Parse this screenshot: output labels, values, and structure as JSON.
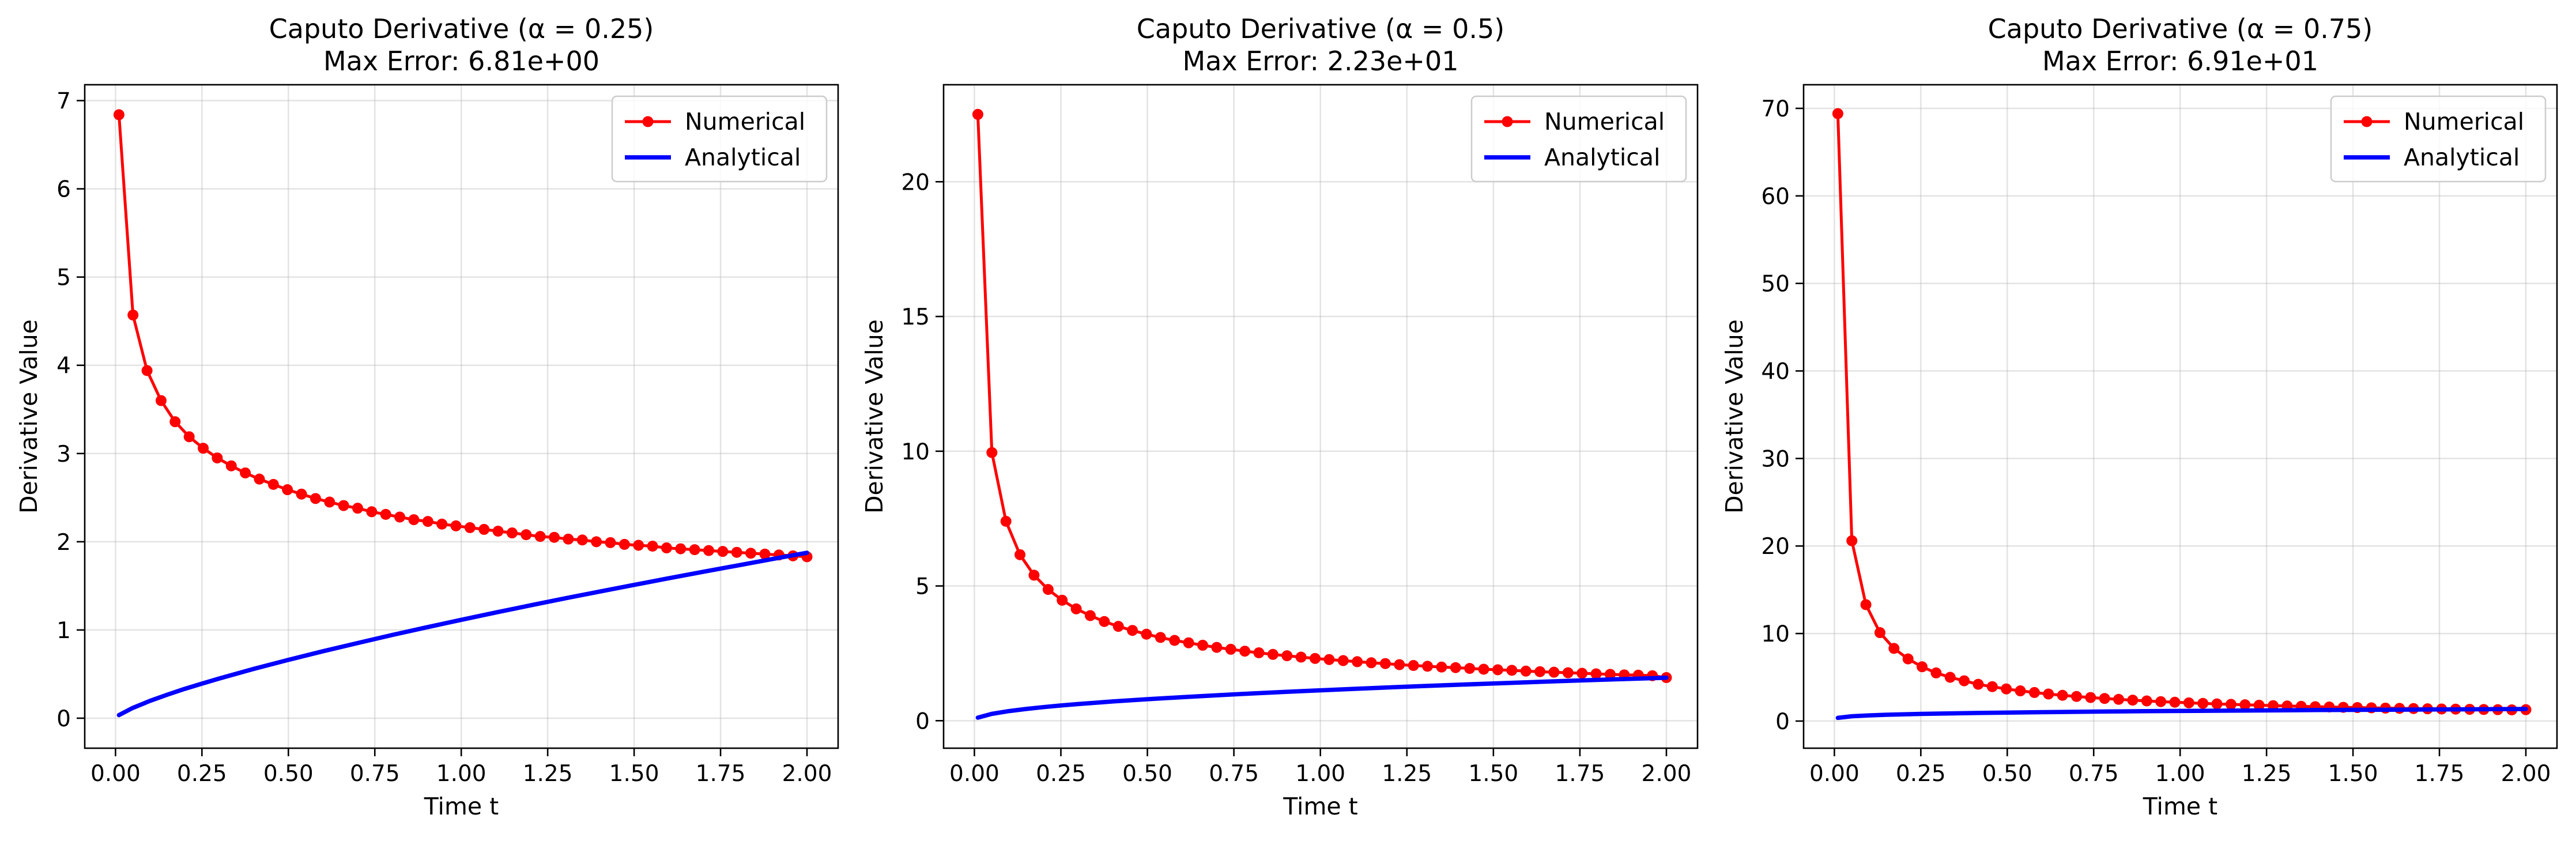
{
  "chart_data": [
    {
      "type": "line",
      "title": "Caputo Derivative (α = 0.25)",
      "subtitle": "Max Error: 6.81e+00",
      "xlabel": "Time t",
      "ylabel": "Derivative Value",
      "alpha": 0.25,
      "xlim": [
        -0.089,
        2.09
      ],
      "ylim": [
        -0.34,
        7.18
      ],
      "xticks": [
        0.0,
        0.25,
        0.5,
        0.75,
        1.0,
        1.25,
        1.5,
        1.75,
        2.0
      ],
      "xtick_labels": [
        "0.00",
        "0.25",
        "0.50",
        "0.75",
        "1.00",
        "1.25",
        "1.50",
        "1.75",
        "2.00"
      ],
      "yticks": [
        0,
        1,
        2,
        3,
        4,
        5,
        6,
        7
      ],
      "ytick_labels": [
        "0",
        "1",
        "2",
        "3",
        "4",
        "5",
        "6",
        "7"
      ],
      "grid": true,
      "legend": "top-right",
      "series": [
        {
          "name": "Numerical",
          "color": "#ff0000",
          "marker": "circle",
          "x": [
            0.01,
            0.0506,
            0.0912,
            0.1318,
            0.1724,
            0.2131,
            0.2537,
            0.2943,
            0.3349,
            0.3755,
            0.4161,
            0.4567,
            0.4973,
            0.5379,
            0.5786,
            0.6192,
            0.6598,
            0.7004,
            0.741,
            0.7816,
            0.8222,
            0.8628,
            0.9035,
            0.9441,
            0.9847,
            1.0253,
            1.0659,
            1.1065,
            1.1471,
            1.1877,
            1.2284,
            1.269,
            1.3096,
            1.3502,
            1.3908,
            1.4314,
            1.472,
            1.5126,
            1.5533,
            1.5939,
            1.6345,
            1.6751,
            1.7157,
            1.7563,
            1.7969,
            1.8375,
            1.8782,
            1.9188,
            1.9594,
            2.0
          ],
          "y": [
            6.84,
            4.57,
            3.94,
            3.6,
            3.36,
            3.19,
            3.06,
            2.95,
            2.86,
            2.78,
            2.71,
            2.65,
            2.59,
            2.54,
            2.49,
            2.45,
            2.41,
            2.38,
            2.34,
            2.31,
            2.28,
            2.25,
            2.23,
            2.2,
            2.18,
            2.16,
            2.14,
            2.12,
            2.1,
            2.08,
            2.06,
            2.05,
            2.03,
            2.02,
            2.0,
            1.99,
            1.97,
            1.96,
            1.95,
            1.93,
            1.92,
            1.91,
            1.9,
            1.89,
            1.88,
            1.87,
            1.86,
            1.85,
            1.84,
            1.83
          ]
        },
        {
          "name": "Analytical",
          "color": "#0000ff",
          "marker": "none",
          "x": [
            0.01,
            0.05,
            0.1,
            0.15,
            0.2,
            0.25,
            0.3,
            0.4,
            0.5,
            0.6,
            0.7,
            0.8,
            0.9,
            1.0,
            1.1,
            1.2,
            1.3,
            1.4,
            1.5,
            1.6,
            1.7,
            1.8,
            1.9,
            2.0
          ],
          "y": [
            0.035,
            0.117,
            0.197,
            0.267,
            0.332,
            0.392,
            0.45,
            0.559,
            0.661,
            0.759,
            0.852,
            0.943,
            1.03,
            1.115,
            1.198,
            1.279,
            1.358,
            1.435,
            1.511,
            1.586,
            1.66,
            1.732,
            1.804,
            1.875
          ]
        }
      ]
    },
    {
      "type": "line",
      "title": "Caputo Derivative (α = 0.5)",
      "subtitle": "Max Error: 2.23e+01",
      "xlabel": "Time t",
      "ylabel": "Derivative Value",
      "alpha": 0.5,
      "xlim": [
        -0.089,
        2.09
      ],
      "ylim": [
        -1.02,
        23.6
      ],
      "xticks": [
        0.0,
        0.25,
        0.5,
        0.75,
        1.0,
        1.25,
        1.5,
        1.75,
        2.0
      ],
      "xtick_labels": [
        "0.00",
        "0.25",
        "0.50",
        "0.75",
        "1.00",
        "1.25",
        "1.50",
        "1.75",
        "2.00"
      ],
      "yticks": [
        0,
        5,
        10,
        15,
        20
      ],
      "ytick_labels": [
        "0",
        "5",
        "10",
        "15",
        "20"
      ],
      "grid": true,
      "legend": "top-right",
      "series": [
        {
          "name": "Numerical",
          "color": "#ff0000",
          "marker": "circle",
          "x": [
            0.01,
            0.0506,
            0.0912,
            0.1318,
            0.1724,
            0.2131,
            0.2537,
            0.2943,
            0.3349,
            0.3755,
            0.4161,
            0.4567,
            0.4973,
            0.5379,
            0.5786,
            0.6192,
            0.6598,
            0.7004,
            0.741,
            0.7816,
            0.8222,
            0.8628,
            0.9035,
            0.9441,
            0.9847,
            1.0253,
            1.0659,
            1.1065,
            1.1471,
            1.1877,
            1.2284,
            1.269,
            1.3096,
            1.3502,
            1.3908,
            1.4314,
            1.472,
            1.5126,
            1.5533,
            1.5939,
            1.6345,
            1.6751,
            1.7157,
            1.7563,
            1.7969,
            1.8375,
            1.8782,
            1.9188,
            1.9594,
            2.0
          ],
          "y": [
            22.5,
            9.95,
            7.4,
            6.16,
            5.4,
            4.87,
            4.47,
            4.15,
            3.9,
            3.68,
            3.5,
            3.35,
            3.21,
            3.09,
            2.98,
            2.89,
            2.8,
            2.72,
            2.65,
            2.58,
            2.52,
            2.46,
            2.41,
            2.36,
            2.31,
            2.27,
            2.23,
            2.19,
            2.15,
            2.12,
            2.08,
            2.05,
            2.02,
            1.99,
            1.97,
            1.94,
            1.91,
            1.89,
            1.87,
            1.84,
            1.82,
            1.8,
            1.78,
            1.76,
            1.74,
            1.72,
            1.7,
            1.69,
            1.67,
            1.6
          ]
        },
        {
          "name": "Analytical",
          "color": "#0000ff",
          "marker": "none",
          "x": [
            0.01,
            0.05,
            0.1,
            0.15,
            0.2,
            0.25,
            0.3,
            0.4,
            0.5,
            0.6,
            0.7,
            0.8,
            0.9,
            1.0,
            1.1,
            1.2,
            1.3,
            1.4,
            1.5,
            1.6,
            1.7,
            1.8,
            1.9,
            2.0
          ],
          "y": [
            0.113,
            0.252,
            0.357,
            0.437,
            0.505,
            0.564,
            0.618,
            0.714,
            0.798,
            0.874,
            0.944,
            1.009,
            1.07,
            1.128,
            1.183,
            1.236,
            1.287,
            1.335,
            1.382,
            1.427,
            1.471,
            1.514,
            1.555,
            1.596
          ]
        }
      ]
    },
    {
      "type": "line",
      "title": "Caputo Derivative (α = 0.75)",
      "subtitle": "Max Error: 6.91e+01",
      "xlabel": "Time t",
      "ylabel": "Derivative Value",
      "alpha": 0.75,
      "xlim": [
        -0.089,
        2.09
      ],
      "ylim": [
        -3.1,
        72.7
      ],
      "xticks": [
        0.0,
        0.25,
        0.5,
        0.75,
        1.0,
        1.25,
        1.5,
        1.75,
        2.0
      ],
      "xtick_labels": [
        "0.00",
        "0.25",
        "0.50",
        "0.75",
        "1.00",
        "1.25",
        "1.50",
        "1.75",
        "2.00"
      ],
      "yticks": [
        0,
        10,
        20,
        30,
        40,
        50,
        60,
        70
      ],
      "ytick_labels": [
        "0",
        "10",
        "20",
        "30",
        "40",
        "50",
        "60",
        "70"
      ],
      "grid": true,
      "legend": "top-right",
      "series": [
        {
          "name": "Numerical",
          "color": "#ff0000",
          "marker": "circle",
          "x": [
            0.01,
            0.0506,
            0.0912,
            0.1318,
            0.1724,
            0.2131,
            0.2537,
            0.2943,
            0.3349,
            0.3755,
            0.4161,
            0.4567,
            0.4973,
            0.5379,
            0.5786,
            0.6192,
            0.6598,
            0.7004,
            0.741,
            0.7816,
            0.8222,
            0.8628,
            0.9035,
            0.9441,
            0.9847,
            1.0253,
            1.0659,
            1.1065,
            1.1471,
            1.1877,
            1.2284,
            1.269,
            1.3096,
            1.3502,
            1.3908,
            1.4314,
            1.472,
            1.5126,
            1.5533,
            1.5939,
            1.6345,
            1.6751,
            1.7157,
            1.7563,
            1.7969,
            1.8375,
            1.8782,
            1.9188,
            1.9594,
            2.0
          ],
          "y": [
            69.4,
            20.6,
            13.3,
            10.1,
            8.3,
            7.1,
            6.2,
            5.5,
            5.0,
            4.6,
            4.2,
            3.93,
            3.67,
            3.45,
            3.26,
            3.09,
            2.94,
            2.81,
            2.69,
            2.58,
            2.48,
            2.39,
            2.3,
            2.22,
            2.15,
            2.08,
            2.02,
            1.96,
            1.91,
            1.86,
            1.81,
            1.76,
            1.72,
            1.68,
            1.64,
            1.61,
            1.57,
            1.54,
            1.51,
            1.48,
            1.45,
            1.43,
            1.4,
            1.38,
            1.36,
            1.34,
            1.32,
            1.3,
            1.28,
            1.3
          ]
        },
        {
          "name": "Analytical",
          "color": "#0000ff",
          "marker": "none",
          "x": [
            0.01,
            0.05,
            0.1,
            0.15,
            0.2,
            0.25,
            0.3,
            0.4,
            0.5,
            0.6,
            0.7,
            0.8,
            0.9,
            1.0,
            1.1,
            1.2,
            1.3,
            1.4,
            1.5,
            1.6,
            1.7,
            1.8,
            1.9,
            2.0
          ],
          "y": [
            0.365,
            0.546,
            0.649,
            0.719,
            0.772,
            0.816,
            0.854,
            0.918,
            0.971,
            1.017,
            1.057,
            1.092,
            1.125,
            1.155,
            1.183,
            1.209,
            1.234,
            1.257,
            1.279,
            1.3,
            1.32,
            1.339,
            1.357,
            1.375
          ]
        }
      ]
    }
  ]
}
